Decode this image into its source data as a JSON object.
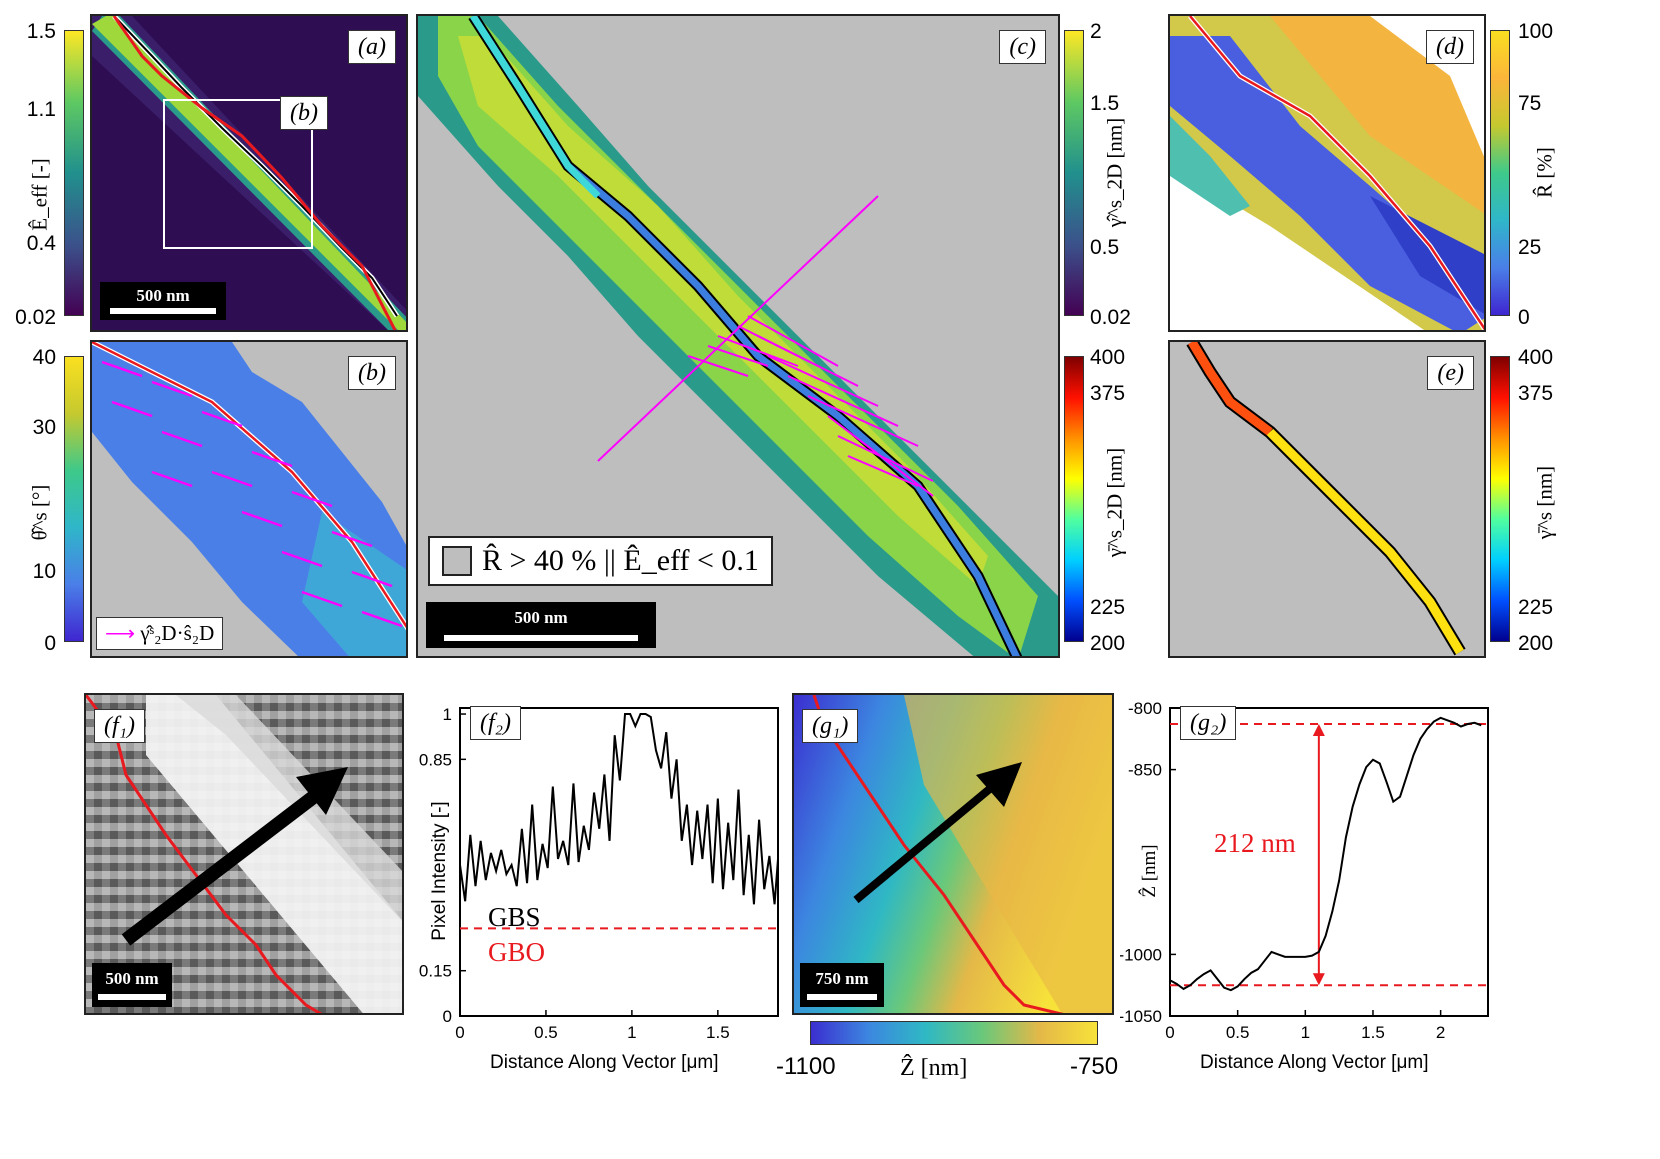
{
  "panel_labels": {
    "a": "(a)",
    "b_inset": "(b)",
    "b": "(b)",
    "c": "(c)",
    "d": "(d)",
    "e": "(e)",
    "f1": "(f₁)",
    "f2": "(f₂)",
    "g1": "(g₁)",
    "g2": "(g₂)"
  },
  "scalebars": {
    "a": "500 nm",
    "c": "500 nm",
    "f1": "500 nm",
    "g1": "750 nm"
  },
  "colorbars": {
    "a": {
      "ticks": [
        "1.5",
        "1.1",
        "0.4",
        "0.02"
      ],
      "label": "Ê_eff [-]"
    },
    "b": {
      "ticks": [
        "40",
        "30",
        "10",
        "0"
      ],
      "label": "θ̂^s [°]"
    },
    "c_top": {
      "ticks": [
        "2",
        "1.5",
        "0.5",
        "0.02"
      ],
      "label": "γ̂^s_2D [nm]"
    },
    "c_bottom": {
      "ticks": [
        "400",
        "375",
        "225",
        "200"
      ],
      "label": "γ̄^s_2D [nm]"
    },
    "d": {
      "ticks": [
        "100",
        "75",
        "25",
        "0"
      ],
      "label": "R̂ [%]"
    },
    "e": {
      "ticks": [
        "400",
        "375",
        "225",
        "200"
      ],
      "label": "γ̄^s [nm]"
    },
    "g1": {
      "ticks": [
        "-1100",
        "-750"
      ],
      "label": "Ẑ [nm]"
    }
  },
  "legends": {
    "b": "γ̂ˢ₂D·ŝ₂D",
    "c": "R̂ > 40 % || Ê_eff < 0.1"
  },
  "colors": {
    "accent_red": "#e8191f",
    "magenta": "#ff00ff",
    "mask_gray": "#bebebe"
  },
  "chart_data": [
    {
      "type": "line",
      "panel": "(f₂)",
      "xlabel": "Distance Along Vector [μm]",
      "ylabel": "Pixel Intensity [-]",
      "xticks": [
        "0",
        "0.5",
        "1",
        "1.5"
      ],
      "yticks": [
        "1",
        "0.85",
        "0.15",
        "0"
      ],
      "xlim": [
        0,
        1.85
      ],
      "ylim": [
        0,
        1.02
      ],
      "threshold": 0.29,
      "threshold_label_above": "GBS",
      "threshold_label_below": "GBO",
      "x": [
        0.0,
        0.03,
        0.06,
        0.09,
        0.12,
        0.15,
        0.18,
        0.21,
        0.24,
        0.27,
        0.3,
        0.33,
        0.36,
        0.39,
        0.42,
        0.45,
        0.48,
        0.51,
        0.54,
        0.57,
        0.6,
        0.63,
        0.66,
        0.69,
        0.72,
        0.75,
        0.78,
        0.81,
        0.84,
        0.87,
        0.9,
        0.93,
        0.96,
        0.99,
        1.02,
        1.05,
        1.08,
        1.11,
        1.14,
        1.17,
        1.2,
        1.23,
        1.26,
        1.29,
        1.32,
        1.35,
        1.38,
        1.41,
        1.44,
        1.47,
        1.5,
        1.53,
        1.56,
        1.59,
        1.62,
        1.65,
        1.68,
        1.71,
        1.74,
        1.77,
        1.8,
        1.83,
        1.85
      ],
      "y": [
        0.5,
        0.38,
        0.6,
        0.43,
        0.58,
        0.45,
        0.54,
        0.48,
        0.55,
        0.47,
        0.5,
        0.43,
        0.62,
        0.44,
        0.7,
        0.45,
        0.57,
        0.49,
        0.76,
        0.52,
        0.58,
        0.5,
        0.77,
        0.51,
        0.63,
        0.55,
        0.74,
        0.62,
        0.8,
        0.58,
        0.93,
        0.78,
        1.0,
        1.0,
        0.96,
        1.0,
        1.0,
        0.99,
        0.88,
        0.82,
        0.94,
        0.72,
        0.85,
        0.58,
        0.7,
        0.5,
        0.68,
        0.52,
        0.7,
        0.44,
        0.72,
        0.42,
        0.64,
        0.45,
        0.75,
        0.4,
        0.6,
        0.37,
        0.65,
        0.42,
        0.53,
        0.37,
        0.52
      ]
    },
    {
      "type": "line",
      "panel": "(g₂)",
      "xlabel": "Distance Along Vector [μm]",
      "ylabel": "Ẑ [nm]",
      "xticks": [
        "0",
        "0.5",
        "1",
        "1.5",
        "2"
      ],
      "yticks": [
        "-800",
        "-850",
        "-1000",
        "-1050"
      ],
      "xlim": [
        0,
        2.35
      ],
      "ylim": [
        -1050,
        -800
      ],
      "annotation": "212 nm",
      "ref_levels": [
        -813,
        -1025
      ],
      "x": [
        0.0,
        0.05,
        0.1,
        0.15,
        0.2,
        0.25,
        0.3,
        0.35,
        0.4,
        0.45,
        0.5,
        0.55,
        0.6,
        0.65,
        0.7,
        0.75,
        0.8,
        0.85,
        0.9,
        0.95,
        1.0,
        1.05,
        1.1,
        1.15,
        1.2,
        1.25,
        1.3,
        1.35,
        1.4,
        1.45,
        1.5,
        1.55,
        1.6,
        1.65,
        1.7,
        1.75,
        1.8,
        1.85,
        1.9,
        1.95,
        2.0,
        2.05,
        2.1,
        2.15,
        2.2,
        2.25,
        2.3
      ],
      "y": [
        -1021,
        -1024,
        -1028,
        -1025,
        -1020,
        -1016,
        -1013,
        -1020,
        -1027,
        -1029,
        -1026,
        -1020,
        -1015,
        -1012,
        -1005,
        -998,
        -1000,
        -1002,
        -1002,
        -1002,
        -1002,
        -1001,
        -998,
        -985,
        -965,
        -940,
        -905,
        -880,
        -862,
        -848,
        -842,
        -845,
        -860,
        -876,
        -872,
        -855,
        -838,
        -825,
        -817,
        -811,
        -808,
        -810,
        -812,
        -815,
        -813,
        -812,
        -814
      ]
    }
  ]
}
